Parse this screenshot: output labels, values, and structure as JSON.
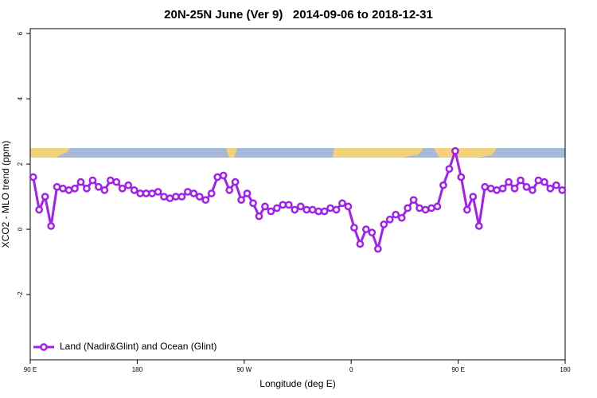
{
  "chart_data": {
    "type": "line",
    "title": "20N-25N June (Ver 9)   2014-09-06 to 2018-12-31",
    "x_label": "Longitude (deg E)",
    "y_label": "XCO2 - MLO trend (ppm)",
    "xlim": [
      90,
      540
    ],
    "ylim": [
      -4,
      6.15
    ],
    "xticks": [
      {
        "value": 90,
        "label": "90 E"
      },
      {
        "value": 180,
        "label": "180"
      },
      {
        "value": 270,
        "label": "90 W"
      },
      {
        "value": 360,
        "label": "0"
      },
      {
        "value": 450,
        "label": "90 E"
      },
      {
        "value": 540,
        "label": "180"
      }
    ],
    "yticks": [
      -2,
      0,
      2,
      4,
      6
    ],
    "legend_position": "bottom-left",
    "x": [
      92.5,
      97.5,
      102.5,
      107.5,
      112.5,
      117.5,
      122.5,
      127.5,
      132.5,
      137.5,
      142.5,
      147.5,
      152.5,
      157.5,
      162.5,
      167.5,
      172.5,
      177.5,
      182.5,
      187.5,
      192.5,
      197.5,
      202.5,
      207.5,
      212.5,
      217.5,
      222.5,
      227.5,
      232.5,
      237.5,
      242.5,
      247.5,
      252.5,
      257.5,
      262.5,
      267.5,
      272.5,
      277.5,
      282.5,
      287.5,
      292.5,
      297.5,
      302.5,
      307.5,
      312.5,
      317.5,
      322.5,
      327.5,
      332.5,
      337.5,
      342.5,
      347.5,
      352.5,
      357.5,
      362.5,
      367.5,
      372.5,
      377.5,
      382.5,
      387.5,
      392.5,
      397.5,
      402.5,
      407.5,
      412.5,
      417.5,
      422.5,
      427.5,
      432.5,
      437.5,
      442.5,
      447.5,
      452.5,
      457.5,
      462.5,
      467.5,
      472.5,
      477.5,
      482.5,
      487.5,
      492.5,
      497.5,
      502.5,
      507.5,
      512.5,
      517.5,
      522.5,
      527.5,
      532.5,
      537.5
    ],
    "series": [
      {
        "name": "Land (Nadir&Glint) and Ocean (Glint)",
        "color": "#a020f0",
        "values": [
          1.6,
          0.6,
          1.0,
          0.1,
          1.3,
          1.25,
          1.2,
          1.25,
          1.45,
          1.25,
          1.5,
          1.3,
          1.2,
          1.5,
          1.45,
          1.25,
          1.35,
          1.2,
          1.1,
          1.1,
          1.1,
          1.15,
          1.0,
          0.95,
          1.0,
          1.0,
          1.15,
          1.1,
          1.0,
          0.9,
          1.1,
          1.6,
          1.65,
          1.2,
          1.45,
          0.9,
          1.1,
          0.8,
          0.4,
          0.7,
          0.55,
          0.65,
          0.75,
          0.75,
          0.6,
          0.7,
          0.6,
          0.6,
          0.55,
          0.55,
          0.65,
          0.6,
          0.8,
          0.7,
          0.05,
          -0.45,
          0.0,
          -0.1,
          -0.6,
          0.15,
          0.3,
          0.45,
          0.35,
          0.65,
          0.9,
          0.65,
          0.6,
          0.65,
          0.7,
          1.35,
          1.85,
          2.4,
          1.6,
          0.6,
          1.0,
          0.1,
          1.3,
          1.25,
          1.2,
          1.25,
          1.45,
          1.25,
          1.5,
          1.3,
          1.2,
          1.5,
          1.45,
          1.25,
          1.35,
          1.2
        ]
      }
    ]
  }
}
